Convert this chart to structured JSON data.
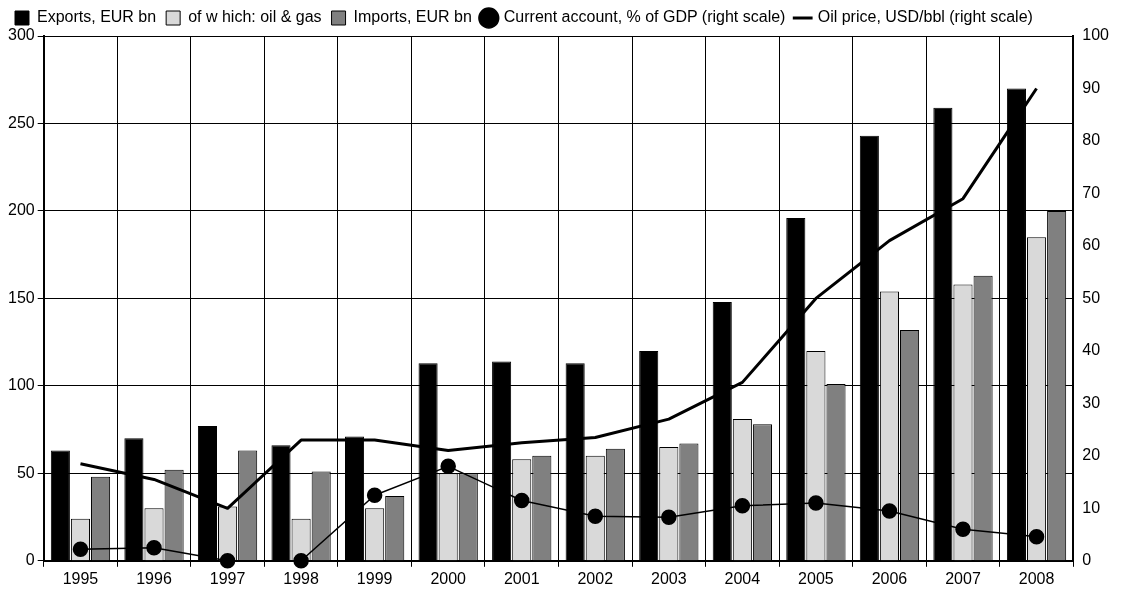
{
  "chart_data": {
    "type": "bar",
    "categories": [
      "1995",
      "1996",
      "1997",
      "1998",
      "1999",
      "2000",
      "2001",
      "2002",
      "2003",
      "2004",
      "2005",
      "2006",
      "2007",
      "2008"
    ],
    "series": [
      {
        "name": "Exports, EUR bn",
        "color": "#000000",
        "values": [
          63,
          70,
          77,
          66,
          71,
          113,
          114,
          113,
          120,
          148,
          196,
          243,
          259,
          270
        ]
      },
      {
        "name": "of w hich: oil & gas",
        "color": "#d9d9d9",
        "values": [
          24,
          30,
          31,
          24,
          30,
          50,
          58,
          60,
          65,
          81,
          120,
          154,
          158,
          185
        ]
      },
      {
        "name": "Imports, EUR bn",
        "color": "#808080",
        "values": [
          48,
          52,
          63,
          51,
          37,
          50,
          60,
          64,
          67,
          78,
          101,
          132,
          163,
          200
        ]
      },
      {
        "name": "Current account, % of GDP (right scale)",
        "type": "line",
        "axis": "y2",
        "marker": "circle",
        "color": "#000000",
        "values": [
          2.2,
          2.5,
          0,
          0,
          12.5,
          18,
          11.5,
          8.5,
          8.3,
          10.5,
          11,
          9.5,
          6,
          4.6
        ]
      },
      {
        "name": "Oil price, USD/bbl (right scale)",
        "type": "line",
        "axis": "y2",
        "marker": "none",
        "color": "#000000",
        "values": [
          18.5,
          15.5,
          10,
          23,
          23,
          21,
          22.5,
          23.5,
          27,
          34,
          50,
          61,
          69,
          90
        ]
      }
    ],
    "ylim": [
      0,
      300
    ],
    "yticks": [
      0,
      50,
      100,
      150,
      200,
      250,
      300
    ],
    "y2lim": [
      0,
      100
    ],
    "y2ticks": [
      0,
      10,
      20,
      30,
      40,
      50,
      60,
      70,
      80,
      90,
      100
    ],
    "grid": true,
    "legend": "top"
  }
}
